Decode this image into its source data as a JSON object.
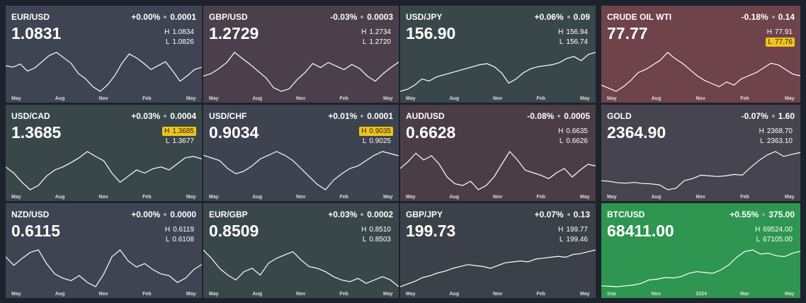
{
  "labels": {
    "high": "H",
    "low": "L"
  },
  "tiles": [
    {
      "symbol": "EUR/USD",
      "change_pct": "+0.00%",
      "change": "0.0001",
      "price": "1.0831",
      "high": "1.0834",
      "low": "1.0826",
      "color": "#3f4452",
      "months": [
        "May",
        "Aug",
        "Nov",
        "Feb",
        "May"
      ],
      "spark": [
        1.085,
        1.083,
        1.087,
        1.078,
        1.082,
        1.09,
        1.098,
        1.102,
        1.095,
        1.088,
        1.075,
        1.068,
        1.058,
        1.052,
        1.06,
        1.072,
        1.088,
        1.1,
        1.095,
        1.088,
        1.08,
        1.085,
        1.09,
        1.078,
        1.065,
        1.072,
        1.08,
        1.083
      ]
    },
    {
      "symbol": "GBP/USD",
      "change_pct": "-0.03%",
      "change": "0.0003",
      "price": "1.2729",
      "high": "1.2734",
      "low": "1.2720",
      "color": "#4a3f4b",
      "months": [
        "May",
        "Aug",
        "Nov",
        "Feb",
        "May"
      ],
      "spark": [
        1.245,
        1.25,
        1.26,
        1.272,
        1.292,
        1.28,
        1.268,
        1.255,
        1.242,
        1.222,
        1.215,
        1.22,
        1.238,
        1.252,
        1.27,
        1.262,
        1.272,
        1.265,
        1.258,
        1.268,
        1.26,
        1.245,
        1.235,
        1.25,
        1.262,
        1.273
      ]
    },
    {
      "symbol": "USD/JPY",
      "change_pct": "+0.06%",
      "change": "0.09",
      "price": "156.90",
      "high": "156.94",
      "low": "156.74",
      "color": "#3a474a",
      "months": [
        "May",
        "Aug",
        "Nov",
        "Feb",
        "May"
      ],
      "spark": [
        138,
        139,
        141,
        144,
        143,
        145,
        146,
        147,
        148,
        149,
        150,
        151,
        151.5,
        150,
        147,
        142,
        144,
        147,
        149,
        150,
        150.5,
        151,
        152,
        154,
        155,
        153,
        156,
        157
      ]
    },
    {
      "symbol": "CRUDE OIL WTI",
      "change_pct": "-0.18%",
      "change": "0.14",
      "price": "77.77",
      "high": "77.91",
      "low": "77.76",
      "highlight": "low",
      "color": "#6e434a",
      "months": [
        "May",
        "Aug",
        "Nov",
        "Feb",
        "May"
      ],
      "spark": [
        72,
        70,
        68,
        71,
        75,
        80,
        82,
        85,
        88,
        93,
        89,
        86,
        82,
        78,
        75,
        73,
        71,
        74,
        72,
        76,
        78,
        80,
        83,
        86,
        85,
        82,
        79,
        78
      ]
    },
    {
      "symbol": "USD/CAD",
      "change_pct": "+0.03%",
      "change": "0.0004",
      "price": "1.3685",
      "high": "1.3685",
      "low": "1.3677",
      "highlight": "high",
      "color": "#3a474a",
      "months": [
        "May",
        "Aug",
        "Nov",
        "Feb",
        "May"
      ],
      "spark": [
        1.355,
        1.345,
        1.33,
        1.318,
        1.325,
        1.34,
        1.35,
        1.355,
        1.362,
        1.37,
        1.38,
        1.372,
        1.365,
        1.345,
        1.33,
        1.34,
        1.35,
        1.345,
        1.352,
        1.355,
        1.35,
        1.36,
        1.37,
        1.372,
        1.368
      ]
    },
    {
      "symbol": "USD/CHF",
      "change_pct": "+0.01%",
      "change": "0.0001",
      "price": "0.9034",
      "high": "0.9035",
      "low": "0.9025",
      "highlight": "high",
      "color": "#3e4350",
      "months": [
        "May",
        "Aug",
        "Nov",
        "Feb",
        "May"
      ],
      "spark": [
        0.905,
        0.9,
        0.895,
        0.88,
        0.87,
        0.875,
        0.885,
        0.898,
        0.905,
        0.912,
        0.905,
        0.895,
        0.88,
        0.865,
        0.85,
        0.84,
        0.858,
        0.87,
        0.88,
        0.885,
        0.895,
        0.905,
        0.912,
        0.908,
        0.904
      ]
    },
    {
      "symbol": "AUD/USD",
      "change_pct": "-0.08%",
      "change": "0.0005",
      "price": "0.6628",
      "high": "0.6635",
      "low": "0.6626",
      "color": "#4b3d45",
      "months": [
        "May",
        "Aug",
        "Nov",
        "Feb",
        "May"
      ],
      "spark": [
        0.66,
        0.668,
        0.678,
        0.67,
        0.675,
        0.665,
        0.65,
        0.642,
        0.64,
        0.645,
        0.635,
        0.64,
        0.65,
        0.665,
        0.68,
        0.67,
        0.658,
        0.655,
        0.652,
        0.648,
        0.655,
        0.66,
        0.65,
        0.658,
        0.665,
        0.663
      ]
    },
    {
      "symbol": "GOLD",
      "change_pct": "-0.07%",
      "change": "1.60",
      "price": "2364.90",
      "high": "2368.70",
      "low": "2363.10",
      "color": "#45444f",
      "months": [
        "May",
        "Aug",
        "Nov",
        "Feb",
        "May"
      ],
      "spark": [
        1960,
        1950,
        1930,
        1925,
        1935,
        1920,
        1915,
        1900,
        1830,
        1850,
        1960,
        1990,
        2040,
        2030,
        2020,
        2030,
        2050,
        2040,
        2150,
        2250,
        2330,
        2380,
        2310,
        2340,
        2365
      ]
    },
    {
      "symbol": "NZD/USD",
      "change_pct": "+0.00%",
      "change": "0.0000",
      "price": "0.6115",
      "high": "0.6119",
      "low": "0.6108",
      "color": "#3f4452",
      "months": [
        "May",
        "Aug",
        "Nov",
        "Feb",
        "May"
      ],
      "spark": [
        0.62,
        0.61,
        0.618,
        0.625,
        0.628,
        0.612,
        0.6,
        0.595,
        0.592,
        0.598,
        0.59,
        0.585,
        0.6,
        0.62,
        0.628,
        0.615,
        0.608,
        0.612,
        0.605,
        0.6,
        0.598,
        0.59,
        0.595,
        0.605,
        0.611
      ]
    },
    {
      "symbol": "EUR/GBP",
      "change_pct": "+0.03%",
      "change": "0.0002",
      "price": "0.8509",
      "high": "0.8510",
      "low": "0.8503",
      "color": "#3a474a",
      "months": [
        "May",
        "Aug",
        "Nov",
        "Feb",
        "May"
      ],
      "spark": [
        0.873,
        0.868,
        0.862,
        0.858,
        0.855,
        0.86,
        0.862,
        0.858,
        0.865,
        0.868,
        0.87,
        0.872,
        0.867,
        0.863,
        0.862,
        0.86,
        0.857,
        0.855,
        0.854,
        0.856,
        0.853,
        0.855,
        0.857,
        0.855,
        0.851
      ]
    },
    {
      "symbol": "GBP/JPY",
      "change_pct": "+0.07%",
      "change": "0.13",
      "price": "199.73",
      "high": "199.77",
      "low": "199.46",
      "color": "#3c4048",
      "months": [
        "May",
        "Aug",
        "Nov",
        "Feb",
        "May"
      ],
      "spark": [
        160,
        163,
        166,
        170,
        172,
        175,
        177,
        180,
        182,
        184,
        183,
        182,
        180,
        183,
        186,
        187,
        188,
        187,
        190,
        191,
        192,
        193,
        192,
        195,
        196,
        198,
        200
      ]
    },
    {
      "symbol": "BTC/USD",
      "change_pct": "+0.55%",
      "change": "375.00",
      "price": "68411.00",
      "high": "69524.00",
      "low": "67105.00",
      "color": "#2e9650",
      "months": [
        "Sep",
        "Nov",
        "2024",
        "Mar",
        "May"
      ],
      "spark": [
        27000,
        26500,
        26000,
        27000,
        28000,
        30000,
        34000,
        35000,
        37000,
        36500,
        38000,
        42000,
        44000,
        43000,
        42000,
        46000,
        52000,
        61000,
        68000,
        70000,
        65000,
        66000,
        63000,
        62000,
        66000,
        68400
      ]
    }
  ]
}
